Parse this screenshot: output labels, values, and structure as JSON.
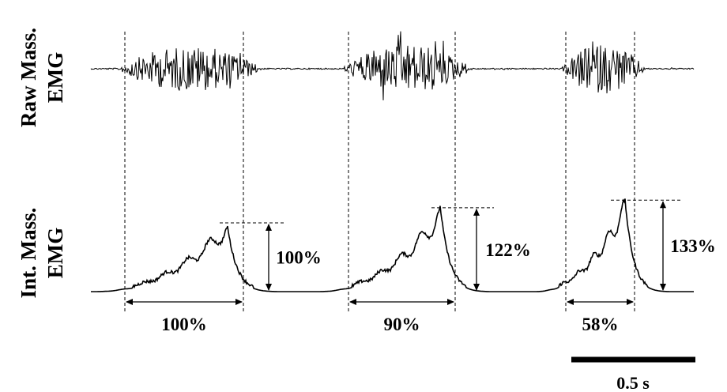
{
  "chart_data": {
    "type": "line",
    "panels": [
      {
        "label_line1": "Raw Mass.",
        "label_line2": "EMG",
        "kind": "raw"
      },
      {
        "label_line1": "Int. Mass.",
        "label_line2": "EMG",
        "kind": "integrated"
      }
    ],
    "bursts": [
      {
        "duration_label": "100%",
        "amplitude_label": "100%",
        "relative_duration": 1.0,
        "relative_amplitude": 1.0
      },
      {
        "duration_label": "90%",
        "amplitude_label": "122%",
        "relative_duration": 0.9,
        "relative_amplitude": 1.22
      },
      {
        "duration_label": "58%",
        "amplitude_label": "133%",
        "relative_duration": 0.58,
        "relative_amplitude": 1.33
      }
    ],
    "scale_bar": {
      "label": "0.5 s",
      "seconds": 0.5
    }
  },
  "colors": {
    "trace": "#000000",
    "background": "#ffffff"
  }
}
